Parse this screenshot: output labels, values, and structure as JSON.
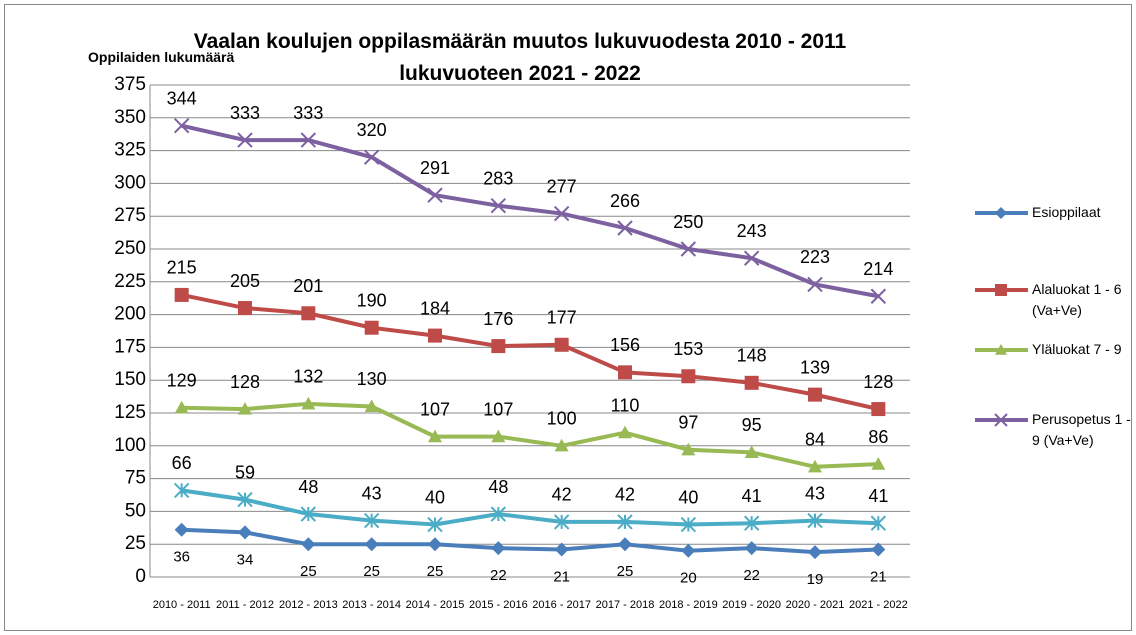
{
  "chart_data": {
    "type": "line",
    "title": "Vaalan koulujen oppilasmäärän muutos lukuvuodesta 2010 - 2011 lukuvuoteen 2021 - 2022",
    "y_axis_label": "Oppilaiden lukumäärä",
    "categories": [
      "2010 - 2011",
      "2011 - 2012",
      "2012 - 2013",
      "2013 - 2014",
      "2014 - 2015",
      "2015 - 2016",
      "2016 - 2017",
      "2017 - 2018",
      "2018 - 2019",
      "2019 - 2020",
      "2020 - 2021",
      "2021 - 2022"
    ],
    "ylim": [
      0,
      375
    ],
    "yticks": [
      0,
      25,
      50,
      75,
      100,
      125,
      150,
      175,
      200,
      225,
      250,
      275,
      300,
      325,
      350,
      375
    ],
    "grid": true,
    "legend": "right",
    "series": [
      {
        "name": "Esioppilaat",
        "color": "#4a7ebb",
        "marker": "diamond",
        "values": [
          36,
          34,
          25,
          25,
          25,
          22,
          21,
          25,
          20,
          22,
          19,
          21
        ]
      },
      {
        "name": "Alaluokat 1 - 6 (Va+Ve)",
        "color": "#be4b48",
        "marker": "square",
        "values": [
          215,
          205,
          201,
          190,
          184,
          176,
          177,
          156,
          153,
          148,
          139,
          128
        ]
      },
      {
        "name": "Yläluokat 7 - 9",
        "color": "#98b954",
        "marker": "triangle",
        "values": [
          129,
          128,
          132,
          130,
          107,
          107,
          100,
          110,
          97,
          95,
          84,
          86
        ]
      },
      {
        "name": "Perusopetus 1 - 9 (Va+Ve)",
        "color": "#7d60a0",
        "marker": "x",
        "values": [
          344,
          333,
          333,
          320,
          291,
          283,
          277,
          266,
          250,
          243,
          223,
          214
        ]
      },
      {
        "color": "#4bacc6",
        "marker": "star",
        "values": [
          66,
          59,
          48,
          43,
          40,
          48,
          42,
          42,
          40,
          41,
          43,
          41
        ]
      }
    ]
  }
}
